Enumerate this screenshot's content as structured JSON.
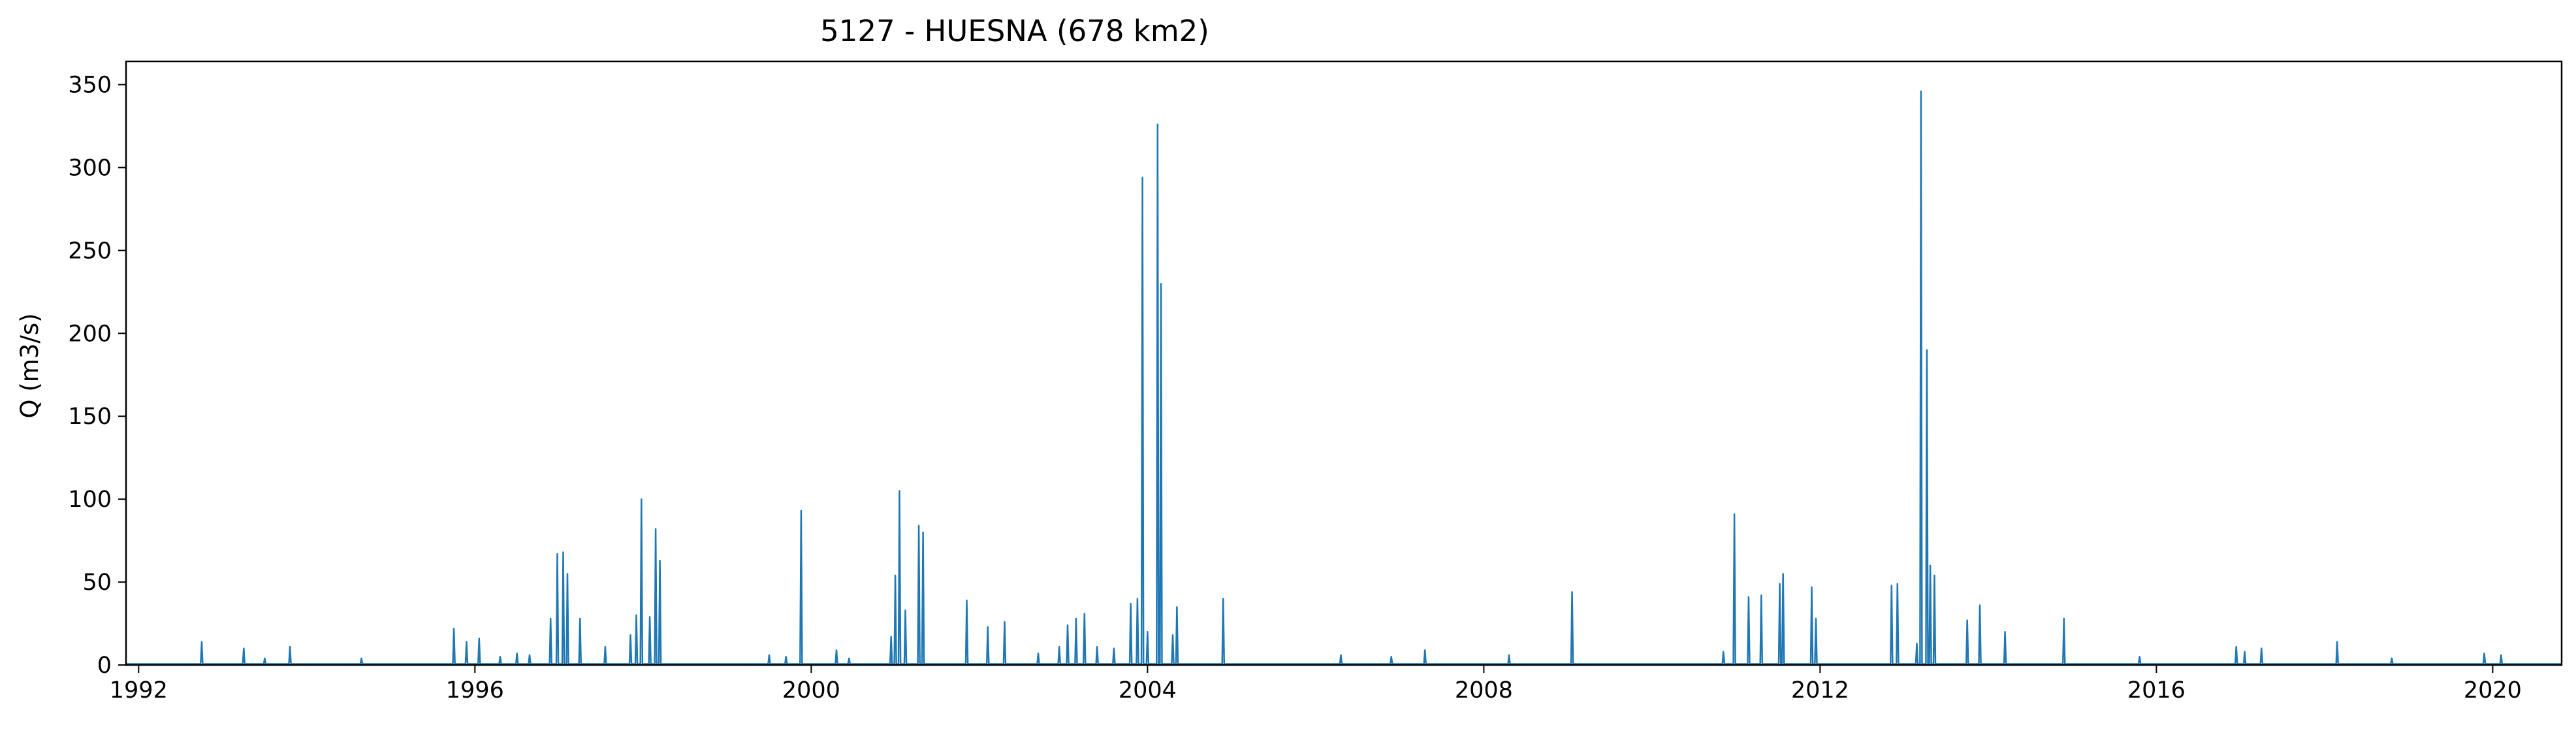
{
  "chart_data": {
    "type": "line",
    "title": "5127 - HUESNA (678 km2)",
    "xlabel": "",
    "ylabel": "Q (m3/s)",
    "xlim": [
      1991.85,
      2020.82
    ],
    "ylim": [
      0,
      364
    ],
    "x_ticks": [
      1992,
      1996,
      2000,
      2004,
      2008,
      2012,
      2016,
      2020
    ],
    "x_tick_labels": [
      "1992",
      "1996",
      "2000",
      "2004",
      "2008",
      "2012",
      "2016",
      "2020"
    ],
    "y_ticks": [
      0,
      50,
      100,
      150,
      200,
      250,
      300,
      350
    ],
    "y_tick_labels": [
      "0",
      "50",
      "100",
      "150",
      "200",
      "250",
      "300",
      "350"
    ],
    "grid": false,
    "legend": "none",
    "series": [
      {
        "color": "#1f77b4",
        "baseflow": 0.6,
        "peaks": [
          [
            1992.75,
            14
          ],
          [
            1993.25,
            10
          ],
          [
            1993.5,
            4
          ],
          [
            1993.8,
            11
          ],
          [
            1994.65,
            4
          ],
          [
            1995.75,
            22
          ],
          [
            1995.9,
            14
          ],
          [
            1996.05,
            16
          ],
          [
            1996.3,
            5
          ],
          [
            1996.5,
            7
          ],
          [
            1996.65,
            6
          ],
          [
            1996.9,
            28
          ],
          [
            1996.98,
            67
          ],
          [
            1997.05,
            68
          ],
          [
            1997.1,
            55
          ],
          [
            1997.25,
            28
          ],
          [
            1997.55,
            11
          ],
          [
            1997.85,
            18
          ],
          [
            1997.92,
            30
          ],
          [
            1997.98,
            100
          ],
          [
            1998.08,
            29
          ],
          [
            1998.15,
            82
          ],
          [
            1998.2,
            63
          ],
          [
            1999.5,
            6
          ],
          [
            1999.7,
            5
          ],
          [
            1999.88,
            93
          ],
          [
            2000.3,
            9
          ],
          [
            2000.45,
            4
          ],
          [
            2000.95,
            17
          ],
          [
            2001.0,
            54
          ],
          [
            2001.05,
            105
          ],
          [
            2001.12,
            33
          ],
          [
            2001.28,
            84
          ],
          [
            2001.33,
            80
          ],
          [
            2001.85,
            39
          ],
          [
            2002.1,
            23
          ],
          [
            2002.3,
            26
          ],
          [
            2002.7,
            7
          ],
          [
            2002.95,
            11
          ],
          [
            2003.05,
            24
          ],
          [
            2003.15,
            28
          ],
          [
            2003.25,
            31
          ],
          [
            2003.4,
            11
          ],
          [
            2003.6,
            10
          ],
          [
            2003.8,
            37
          ],
          [
            2003.88,
            40
          ],
          [
            2003.94,
            294
          ],
          [
            2004.0,
            20
          ],
          [
            2004.12,
            326
          ],
          [
            2004.16,
            230
          ],
          [
            2004.3,
            18
          ],
          [
            2004.35,
            35
          ],
          [
            2004.9,
            40
          ],
          [
            2006.3,
            6
          ],
          [
            2006.9,
            5
          ],
          [
            2007.3,
            9
          ],
          [
            2008.3,
            6
          ],
          [
            2009.05,
            44
          ],
          [
            2010.85,
            8
          ],
          [
            2010.98,
            91
          ],
          [
            2011.15,
            41
          ],
          [
            2011.3,
            42
          ],
          [
            2011.52,
            49
          ],
          [
            2011.56,
            55
          ],
          [
            2011.9,
            47
          ],
          [
            2011.95,
            28
          ],
          [
            2012.85,
            48
          ],
          [
            2012.92,
            49
          ],
          [
            2013.15,
            13
          ],
          [
            2013.2,
            346
          ],
          [
            2013.27,
            190
          ],
          [
            2013.31,
            60
          ],
          [
            2013.36,
            54
          ],
          [
            2013.75,
            27
          ],
          [
            2013.9,
            36
          ],
          [
            2014.2,
            20
          ],
          [
            2014.9,
            28
          ],
          [
            2015.8,
            5
          ],
          [
            2016.95,
            11
          ],
          [
            2017.05,
            8
          ],
          [
            2017.25,
            10
          ],
          [
            2018.15,
            14
          ],
          [
            2018.8,
            4
          ],
          [
            2019.9,
            7
          ],
          [
            2020.1,
            6
          ]
        ]
      }
    ]
  }
}
